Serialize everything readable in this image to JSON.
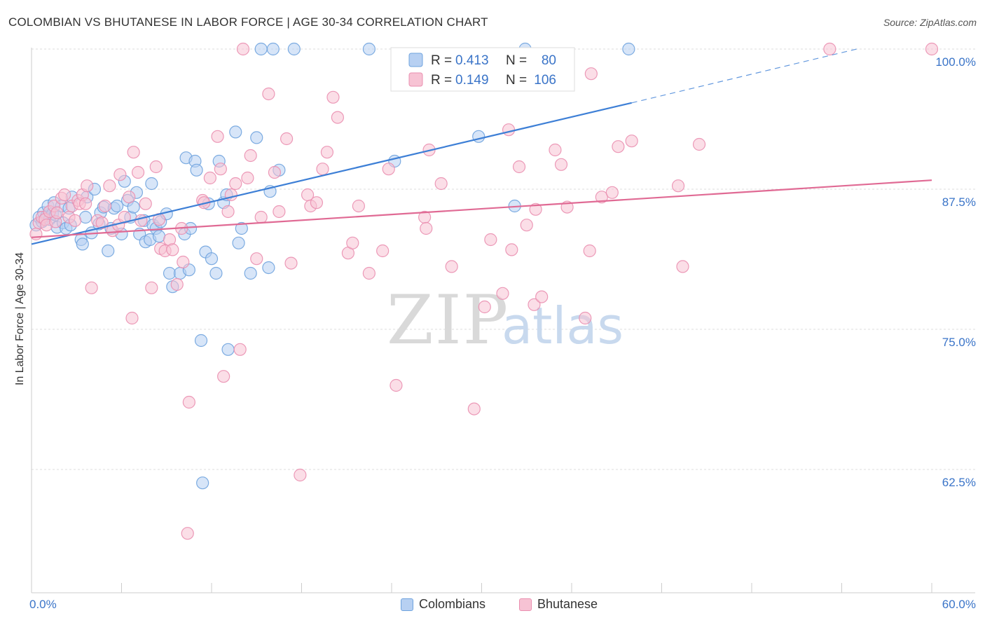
{
  "title": "COLOMBIAN VS BHUTANESE IN LABOR FORCE | AGE 30-34 CORRELATION CHART",
  "source": "Source: ZipAtlas.com",
  "watermark": "ZIPatlas",
  "chart_data": {
    "type": "scatter",
    "ylabel": "In Labor Force | Age 30-34",
    "xlim": [
      0,
      60
    ],
    "ylim": [
      51.5,
      100.5
    ],
    "x_tick_labels": [
      "0.0%",
      "60.0%"
    ],
    "y_ticks": [
      62.5,
      75.0,
      87.5,
      100.0
    ],
    "y_tick_labels": [
      "62.5%",
      "75.0%",
      "87.5%",
      "100.0%"
    ],
    "grid": "horizontal dashed",
    "legend_position": "top-center",
    "series": [
      {
        "name": "Colombians",
        "color": "#6fa3de",
        "fill": "#b7d0f2",
        "line_color": "#3d7fd6",
        "R": "0.413",
        "N": "80",
        "trend": {
          "x0": 0,
          "y0": 82.6,
          "x1": 40,
          "y1": 95.2,
          "dash_to_x": 55,
          "dash_to_y": 100
        },
        "points": [
          [
            0.3,
            84.3
          ],
          [
            0.5,
            85.0
          ],
          [
            0.7,
            84.6
          ],
          [
            0.8,
            85.4
          ],
          [
            1.0,
            85.1
          ],
          [
            1.1,
            86.0
          ],
          [
            1.2,
            84.8
          ],
          [
            1.4,
            85.3
          ],
          [
            1.5,
            86.3
          ],
          [
            1.6,
            85.2
          ],
          [
            1.7,
            84.1
          ],
          [
            2.0,
            86.0
          ],
          [
            2.1,
            84.5
          ],
          [
            2.3,
            84.0
          ],
          [
            2.5,
            85.8
          ],
          [
            2.6,
            84.3
          ],
          [
            2.7,
            86.8
          ],
          [
            3.3,
            83.0
          ],
          [
            3.4,
            82.6
          ],
          [
            3.6,
            85.0
          ],
          [
            3.7,
            86.8
          ],
          [
            4.0,
            83.6
          ],
          [
            4.2,
            87.5
          ],
          [
            4.5,
            84.4
          ],
          [
            4.6,
            85.4
          ],
          [
            4.8,
            85.9
          ],
          [
            5.1,
            82.0
          ],
          [
            5.3,
            84.0
          ],
          [
            5.5,
            85.8
          ],
          [
            5.7,
            86.0
          ],
          [
            6.0,
            83.5
          ],
          [
            6.2,
            88.2
          ],
          [
            6.4,
            86.5
          ],
          [
            6.6,
            85.0
          ],
          [
            6.8,
            85.9
          ],
          [
            7.0,
            87.2
          ],
          [
            7.2,
            83.5
          ],
          [
            7.5,
            84.7
          ],
          [
            7.6,
            82.8
          ],
          [
            7.9,
            83.0
          ],
          [
            8.0,
            88.0
          ],
          [
            8.1,
            84.3
          ],
          [
            8.3,
            84.0
          ],
          [
            8.5,
            83.3
          ],
          [
            8.6,
            84.6
          ],
          [
            9.0,
            85.3
          ],
          [
            9.2,
            80.0
          ],
          [
            9.4,
            78.8
          ],
          [
            9.9,
            80.0
          ],
          [
            10.2,
            83.5
          ],
          [
            10.3,
            90.3
          ],
          [
            10.5,
            80.3
          ],
          [
            10.6,
            84.0
          ],
          [
            10.9,
            90.0
          ],
          [
            11.0,
            89.2
          ],
          [
            11.3,
            74.0
          ],
          [
            11.4,
            61.3
          ],
          [
            11.6,
            81.9
          ],
          [
            11.8,
            86.2
          ],
          [
            12.0,
            81.3
          ],
          [
            12.3,
            80.0
          ],
          [
            12.5,
            90.0
          ],
          [
            12.8,
            86.3
          ],
          [
            13.0,
            87.0
          ],
          [
            13.1,
            73.2
          ],
          [
            13.6,
            92.6
          ],
          [
            13.8,
            82.7
          ],
          [
            14.0,
            84.0
          ],
          [
            14.6,
            80.0
          ],
          [
            15.0,
            92.1
          ],
          [
            15.3,
            100.0
          ],
          [
            15.8,
            80.5
          ],
          [
            15.9,
            87.3
          ],
          [
            16.1,
            100.0
          ],
          [
            16.5,
            89.2
          ],
          [
            17.5,
            100.0
          ],
          [
            22.5,
            100.0
          ],
          [
            24.2,
            90.0
          ],
          [
            29.8,
            92.2
          ],
          [
            32.2,
            86.0
          ],
          [
            32.9,
            100.0
          ],
          [
            39.8,
            100.0
          ]
        ]
      },
      {
        "name": "Bhutanese",
        "color": "#ea8fb0",
        "fill": "#f7c3d4",
        "line_color": "#e06a94",
        "R": "0.149",
        "N": "106",
        "trend": {
          "x0": 0,
          "y0": 83.2,
          "x1": 60,
          "y1": 88.3
        },
        "points": [
          [
            0.3,
            83.5
          ],
          [
            0.5,
            84.5
          ],
          [
            0.7,
            85.0
          ],
          [
            0.9,
            84.8
          ],
          [
            1.0,
            84.3
          ],
          [
            1.2,
            85.5
          ],
          [
            1.5,
            86.0
          ],
          [
            1.6,
            84.6
          ],
          [
            1.7,
            85.4
          ],
          [
            2.0,
            86.7
          ],
          [
            2.2,
            87.0
          ],
          [
            2.5,
            85.0
          ],
          [
            2.7,
            86.0
          ],
          [
            2.9,
            84.7
          ],
          [
            3.1,
            86.5
          ],
          [
            3.2,
            86.2
          ],
          [
            3.4,
            87.0
          ],
          [
            3.6,
            86.2
          ],
          [
            3.7,
            87.8
          ],
          [
            4.0,
            78.7
          ],
          [
            4.4,
            84.7
          ],
          [
            4.7,
            84.5
          ],
          [
            4.9,
            86.0
          ],
          [
            5.2,
            87.8
          ],
          [
            5.4,
            83.8
          ],
          [
            5.8,
            84.3
          ],
          [
            5.9,
            88.8
          ],
          [
            6.2,
            85.0
          ],
          [
            6.5,
            86.8
          ],
          [
            6.7,
            76.0
          ],
          [
            6.8,
            90.8
          ],
          [
            7.1,
            89.0
          ],
          [
            7.3,
            84.7
          ],
          [
            7.6,
            86.2
          ],
          [
            8.0,
            78.7
          ],
          [
            8.3,
            89.5
          ],
          [
            8.5,
            84.8
          ],
          [
            8.6,
            82.2
          ],
          [
            8.9,
            82.0
          ],
          [
            9.2,
            83.0
          ],
          [
            9.4,
            82.1
          ],
          [
            9.7,
            79.0
          ],
          [
            10.0,
            84.0
          ],
          [
            10.1,
            81.0
          ],
          [
            10.4,
            56.8
          ],
          [
            10.5,
            68.5
          ],
          [
            11.4,
            86.5
          ],
          [
            11.5,
            86.3
          ],
          [
            11.9,
            88.5
          ],
          [
            12.4,
            92.2
          ],
          [
            12.6,
            89.3
          ],
          [
            12.8,
            70.8
          ],
          [
            13.1,
            85.5
          ],
          [
            13.3,
            87.0
          ],
          [
            13.6,
            88.0
          ],
          [
            13.9,
            73.2
          ],
          [
            14.1,
            100.0
          ],
          [
            14.4,
            88.5
          ],
          [
            14.6,
            90.5
          ],
          [
            15.0,
            81.3
          ],
          [
            15.3,
            85.0
          ],
          [
            15.8,
            96.0
          ],
          [
            16.2,
            89.0
          ],
          [
            16.5,
            85.5
          ],
          [
            17.0,
            92.0
          ],
          [
            17.3,
            80.9
          ],
          [
            17.9,
            62.0
          ],
          [
            18.4,
            87.0
          ],
          [
            18.6,
            86.0
          ],
          [
            19.0,
            86.3
          ],
          [
            19.4,
            89.3
          ],
          [
            19.7,
            90.8
          ],
          [
            20.1,
            95.7
          ],
          [
            20.4,
            93.9
          ],
          [
            21.1,
            81.8
          ],
          [
            21.4,
            82.7
          ],
          [
            21.8,
            86.0
          ],
          [
            22.5,
            80.0
          ],
          [
            23.4,
            82.0
          ],
          [
            23.8,
            89.3
          ],
          [
            24.3,
            70.0
          ],
          [
            26.2,
            85.0
          ],
          [
            26.3,
            84.0
          ],
          [
            26.5,
            91.0
          ],
          [
            27.3,
            88.0
          ],
          [
            28.0,
            80.6
          ],
          [
            29.5,
            67.9
          ],
          [
            30.2,
            77.0
          ],
          [
            30.6,
            83.0
          ],
          [
            31.4,
            78.2
          ],
          [
            31.8,
            92.8
          ],
          [
            32.0,
            82.1
          ],
          [
            32.5,
            89.5
          ],
          [
            33.0,
            84.3
          ],
          [
            33.5,
            77.2
          ],
          [
            33.6,
            85.7
          ],
          [
            34.0,
            77.9
          ],
          [
            34.9,
            91.0
          ],
          [
            35.3,
            89.7
          ],
          [
            35.7,
            85.9
          ],
          [
            36.9,
            76.0
          ],
          [
            37.2,
            82.0
          ],
          [
            37.3,
            97.8
          ],
          [
            38.0,
            86.8
          ],
          [
            38.7,
            87.2
          ],
          [
            39.1,
            91.3
          ],
          [
            40.0,
            91.8
          ],
          [
            43.1,
            87.8
          ],
          [
            43.4,
            80.6
          ],
          [
            44.5,
            91.5
          ],
          [
            53.2,
            100.0
          ],
          [
            60.0,
            100.0
          ]
        ]
      }
    ]
  }
}
